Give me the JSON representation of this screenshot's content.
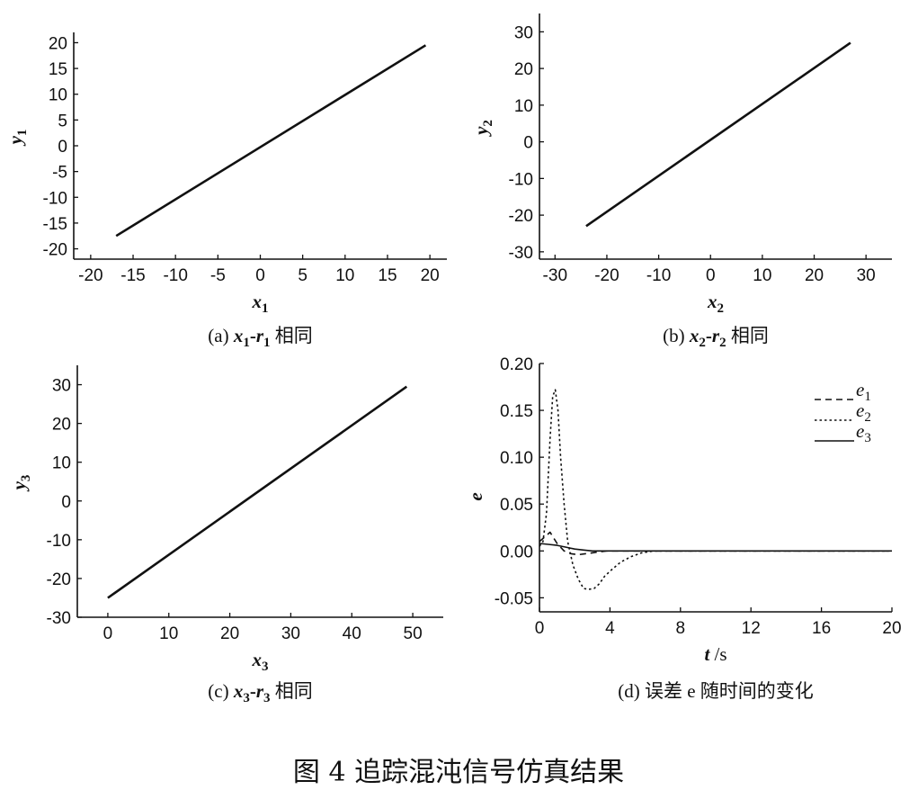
{
  "figure_title": "图 4   追踪混沌信号仿真结果",
  "chart_data": [
    {
      "id": "a",
      "type": "line",
      "caption_tag": "(a)",
      "caption_var": "x",
      "caption_sub1": "1",
      "caption_dash": "-",
      "caption_var2": "r",
      "caption_sub2": "1",
      "caption_text": "相同",
      "xlabel": "x",
      "xlabel_sub": "1",
      "ylabel": "y",
      "ylabel_sub": "1",
      "xlim": [
        -22,
        22
      ],
      "ylim": [
        -22,
        22
      ],
      "xticks": [
        -20,
        -15,
        -10,
        -5,
        0,
        5,
        10,
        15,
        20
      ],
      "yticks": [
        -20,
        -15,
        -10,
        -5,
        0,
        5,
        10,
        15,
        20
      ],
      "series": [
        {
          "x": [
            -17,
            19.5
          ],
          "y": [
            -17.5,
            19.5
          ]
        }
      ]
    },
    {
      "id": "b",
      "type": "line",
      "caption_tag": "(b)",
      "caption_var": "x",
      "caption_sub1": "2",
      "caption_dash": "-",
      "caption_var2": "r",
      "caption_sub2": "2",
      "caption_text": "相同",
      "xlabel": "x",
      "xlabel_sub": "2",
      "ylabel": "y",
      "ylabel_sub": "2",
      "xlim": [
        -33,
        35
      ],
      "ylim": [
        -32,
        35
      ],
      "xticks": [
        -30,
        -20,
        -10,
        0,
        10,
        20,
        30
      ],
      "yticks": [
        -30,
        -20,
        -10,
        0,
        10,
        20,
        30
      ],
      "series": [
        {
          "x": [
            -24,
            27
          ],
          "y": [
            -23,
            27
          ]
        }
      ]
    },
    {
      "id": "c",
      "type": "line",
      "caption_tag": "(c)",
      "caption_var": "x",
      "caption_sub1": "3",
      "caption_dash": "-",
      "caption_var2": "r",
      "caption_sub2": "3",
      "caption_text": "相同",
      "xlabel": "x",
      "xlabel_sub": "3",
      "ylabel": "y",
      "ylabel_sub": "3",
      "xlim": [
        -5,
        55
      ],
      "ylim": [
        -30,
        35
      ],
      "xticks": [
        0,
        10,
        20,
        30,
        40,
        50
      ],
      "yticks": [
        -30,
        -20,
        -10,
        0,
        10,
        20,
        30
      ],
      "series": [
        {
          "x": [
            0,
            49
          ],
          "y": [
            -25,
            29.5
          ]
        }
      ]
    },
    {
      "id": "d",
      "type": "line",
      "caption_tag": "(d)",
      "caption_text": "误差 e 随时间的变化",
      "xlabel": "t /s",
      "ylabel": "e",
      "xlim": [
        0,
        20
      ],
      "ylim": [
        -0.065,
        0.2
      ],
      "xticks": [
        0,
        4,
        8,
        12,
        16,
        20
      ],
      "yticks": [
        "0.20",
        "0.15",
        "0.10",
        "0.05",
        "0.00",
        "-0.05"
      ],
      "legend_position": "top-right",
      "series": [
        {
          "name": "e1",
          "label": "e",
          "sub": "1",
          "style": "dashed",
          "x": [
            0,
            0.3,
            0.6,
            1.0,
            1.4,
            1.8,
            2.2,
            2.6,
            3.0,
            3.4,
            3.8,
            4.5,
            6,
            20
          ],
          "y": [
            0.01,
            0.015,
            0.02,
            0.008,
            0.0,
            -0.003,
            -0.004,
            -0.003,
            -0.002,
            -0.001,
            0.0,
            0.0,
            0.0,
            0.0
          ]
        },
        {
          "name": "e2",
          "label": "e",
          "sub": "2",
          "style": "dotted",
          "x": [
            0,
            0.2,
            0.4,
            0.6,
            0.75,
            0.9,
            1.05,
            1.2,
            1.4,
            1.6,
            1.9,
            2.2,
            2.5,
            2.8,
            3.1,
            3.4,
            3.7,
            4.1,
            4.6,
            5.2,
            5.8,
            6.5,
            7,
            20
          ],
          "y": [
            0.005,
            0.01,
            0.04,
            0.12,
            0.165,
            0.172,
            0.15,
            0.1,
            0.05,
            0.01,
            -0.015,
            -0.03,
            -0.04,
            -0.041,
            -0.04,
            -0.035,
            -0.027,
            -0.02,
            -0.012,
            -0.006,
            -0.002,
            0.0,
            0.0,
            0.0
          ]
        },
        {
          "name": "e3",
          "label": "e",
          "sub": "3",
          "style": "solid",
          "x": [
            0,
            0.5,
            1,
            1.5,
            2,
            2.5,
            3,
            4,
            5,
            20
          ],
          "y": [
            0.008,
            0.007,
            0.006,
            0.004,
            0.002,
            0.001,
            0.0,
            0.0,
            0.0,
            0.0
          ]
        }
      ]
    }
  ]
}
